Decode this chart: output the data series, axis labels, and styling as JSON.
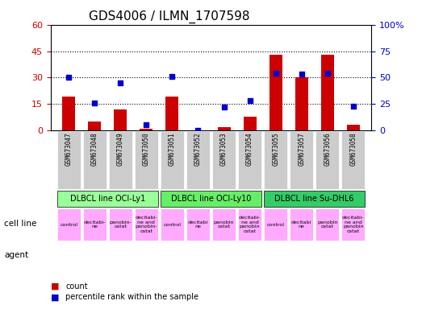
{
  "title": "GDS4006 / ILMN_1707598",
  "samples": [
    "GSM673047",
    "GSM673048",
    "GSM673049",
    "GSM673050",
    "GSM673051",
    "GSM673052",
    "GSM673053",
    "GSM673054",
    "GSM673055",
    "GSM673057",
    "GSM673056",
    "GSM673058"
  ],
  "counts": [
    19,
    5,
    12,
    1,
    19,
    0,
    2,
    8,
    43,
    30,
    43,
    3
  ],
  "percentiles": [
    50,
    26,
    45,
    5,
    51,
    0,
    22,
    28,
    54,
    53,
    54,
    23
  ],
  "bar_color": "#cc0000",
  "dot_color": "#0000cc",
  "left_ylim": [
    0,
    60
  ],
  "right_ylim": [
    0,
    100
  ],
  "left_yticks": [
    0,
    15,
    30,
    45,
    60
  ],
  "right_yticks": [
    0,
    25,
    50,
    75,
    100
  ],
  "right_yticklabels": [
    "0",
    "25",
    "50",
    "75",
    "100%"
  ],
  "cell_lines": [
    {
      "label": "DLBCL line OCI-Ly1",
      "start": 0,
      "end": 4,
      "color": "#99ff99"
    },
    {
      "label": "DLBCL line OCI-Ly10",
      "start": 4,
      "end": 8,
      "color": "#66ff66"
    },
    {
      "label": "DLBCL line Su-DHL6",
      "start": 8,
      "end": 12,
      "color": "#33cc33"
    }
  ],
  "agents": [
    "control",
    "decitabine",
    "panobin\nostat",
    "decitabi-\nne and\npanobin\nostat",
    "control",
    "decitabi\nne",
    "panobin\nostat",
    "decitabi-\nne and\npanobin\nostat",
    "control",
    "decitabi\nne",
    "panobin\nostat",
    "decitabi-\nne and\npanobin\nostat"
  ],
  "agent_colors": [
    "#ffccff",
    "#ffccff",
    "#ffccff",
    "#ffccff",
    "#ffccff",
    "#ffccff",
    "#ffccff",
    "#ffccff",
    "#ffccff",
    "#ffccff",
    "#ffccff",
    "#ffccff"
  ],
  "tick_bg_color": "#cccccc",
  "grid_color": "black",
  "legend_count_color": "#cc0000",
  "legend_dot_color": "#0000cc"
}
